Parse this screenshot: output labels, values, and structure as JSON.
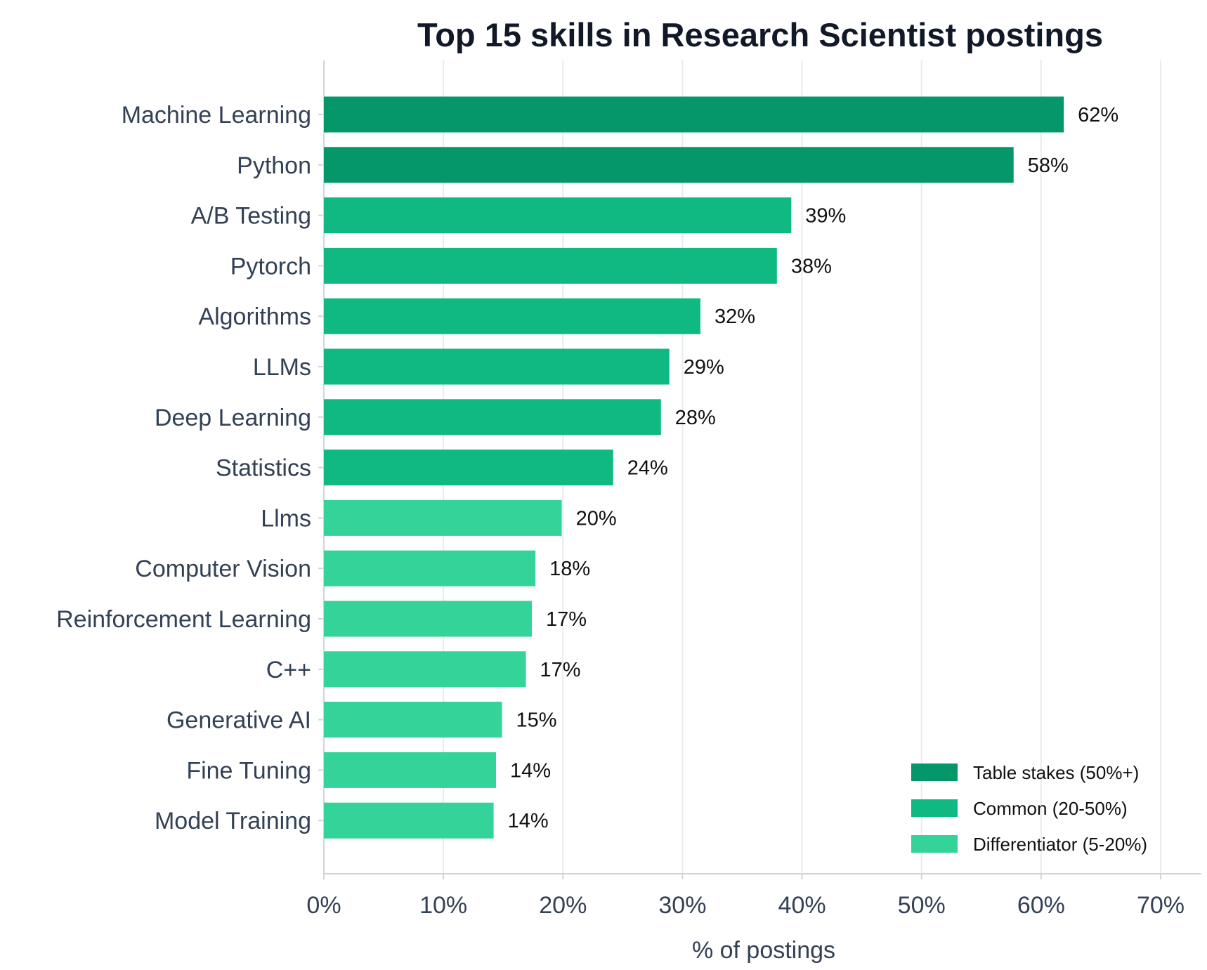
{
  "chart_data": {
    "type": "bar",
    "orientation": "horizontal",
    "title": "Top 15 skills in Research Scientist postings",
    "xlabel": "% of postings",
    "ylabel": "",
    "xlim": [
      0,
      70
    ],
    "xticks": [
      "0%",
      "10%",
      "20%",
      "30%",
      "40%",
      "50%",
      "60%",
      "70%"
    ],
    "grid": "vertical",
    "legend_position": "bottom-right",
    "categories": [
      "Machine Learning",
      "Python",
      "A/B Testing",
      "Pytorch",
      "Algorithms",
      "LLMs",
      "Deep Learning",
      "Statistics",
      "Llms",
      "Computer Vision",
      "Reinforcement Learning",
      "C++",
      "Generative AI",
      "Fine Tuning",
      "Model Training"
    ],
    "values": [
      61.9,
      57.7,
      39.1,
      37.9,
      31.5,
      28.9,
      28.2,
      24.2,
      19.9,
      17.7,
      17.4,
      16.9,
      14.9,
      14.4,
      14.2
    ],
    "value_labels": [
      "62%",
      "58%",
      "39%",
      "38%",
      "32%",
      "29%",
      "28%",
      "24%",
      "20%",
      "18%",
      "17%",
      "17%",
      "15%",
      "14%",
      "14%"
    ],
    "tiers": [
      "table_stakes",
      "table_stakes",
      "common",
      "common",
      "common",
      "common",
      "common",
      "common",
      "differentiator",
      "differentiator",
      "differentiator",
      "differentiator",
      "differentiator",
      "differentiator",
      "differentiator"
    ],
    "legend": [
      {
        "key": "table_stakes",
        "label": "Table stakes (50%+)",
        "color": "#059669"
      },
      {
        "key": "common",
        "label": "Common (20-50%)",
        "color": "#10b981"
      },
      {
        "key": "differentiator",
        "label": "Differentiator (5-20%)",
        "color": "#34d399"
      }
    ]
  }
}
